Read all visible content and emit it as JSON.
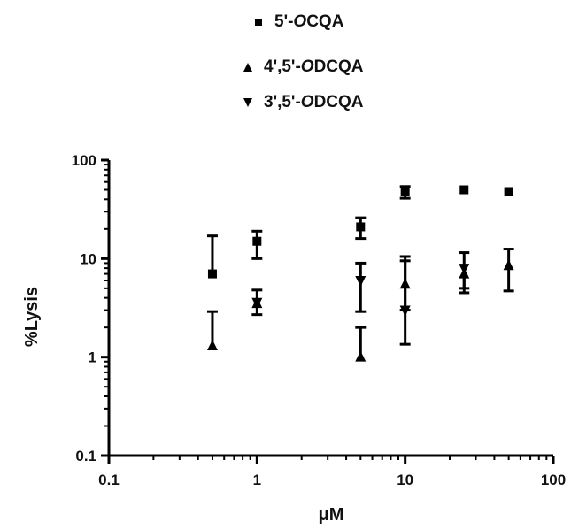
{
  "chart_data": {
    "type": "scatter",
    "xlabel": "μM",
    "ylabel": "%Lysis",
    "xscale": "log",
    "yscale": "log",
    "xlim": [
      0.1,
      100
    ],
    "ylim": [
      0.1,
      100
    ],
    "x_tick_labels": [
      "0.1",
      "1",
      "10",
      "100"
    ],
    "y_tick_labels": [
      "0.1",
      "1",
      "10",
      "100"
    ],
    "grid": false,
    "legend_position": "top",
    "series": [
      {
        "name": "5'-OCQA",
        "name_prefix": "5'-",
        "name_italic": "O",
        "name_suffix": "CQA",
        "marker": "square",
        "points": [
          {
            "x": 0.5,
            "y": 7.0,
            "err_low": null,
            "err_high": 17.0
          },
          {
            "x": 1,
            "y": 15.0,
            "err_low": 10.0,
            "err_high": 19.0
          },
          {
            "x": 5,
            "y": 21.0,
            "err_low": 16.0,
            "err_high": 26.0
          },
          {
            "x": 10,
            "y": 48.0,
            "err_low": 41.0,
            "err_high": 54.0
          },
          {
            "x": 25,
            "y": 50.0,
            "err_low": null,
            "err_high": null
          },
          {
            "x": 50,
            "y": 48.0,
            "err_low": null,
            "err_high": null
          }
        ]
      },
      {
        "name": "4',5'-ODCQA",
        "name_prefix": "4',5'-",
        "name_italic": "O",
        "name_suffix": "DCQA",
        "marker": "triangle-up",
        "points": [
          {
            "x": 0.5,
            "y": 1.3,
            "err_low": null,
            "err_high": 2.9
          },
          {
            "x": 1,
            "y": 3.5,
            "err_low": 2.7,
            "err_high": null
          },
          {
            "x": 5,
            "y": 1.0,
            "err_low": null,
            "err_high": 2.0
          },
          {
            "x": 10,
            "y": 5.5,
            "err_low": 3.0,
            "err_high": 10.5
          },
          {
            "x": 25,
            "y": 7.0,
            "err_low": 4.5,
            "err_high": null
          },
          {
            "x": 50,
            "y": 8.5,
            "err_low": 4.7,
            "err_high": 12.5
          }
        ]
      },
      {
        "name": "3',5'-ODCQA",
        "name_prefix": "3',5'-",
        "name_italic": "O",
        "name_suffix": "DCQA",
        "marker": "triangle-down",
        "points": [
          {
            "x": 1,
            "y": 3.6,
            "err_low": null,
            "err_high": 4.8
          },
          {
            "x": 5,
            "y": 6.0,
            "err_low": 2.9,
            "err_high": 9.0
          },
          {
            "x": 10,
            "y": 3.0,
            "err_low": 1.35,
            "err_high": 9.5
          },
          {
            "x": 25,
            "y": 8.0,
            "err_low": 5.0,
            "err_high": 11.5
          }
        ]
      }
    ]
  }
}
